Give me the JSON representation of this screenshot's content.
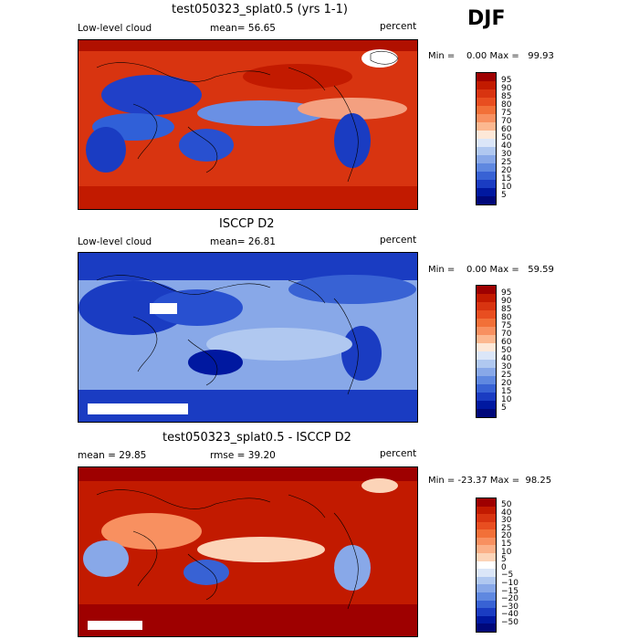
{
  "season": "DJF",
  "panels": [
    {
      "title": "test050323_splat0.5 (yrs 1-1)",
      "left_label": "Low-level cloud",
      "center_label": "mean=  56.65",
      "right_label": "percent",
      "minmax": "Min =    0.00 Max =   99.93",
      "colorbar_labels": [
        "95",
        "90",
        "85",
        "80",
        "75",
        "70",
        "60",
        "50",
        "40",
        "30",
        "25",
        "20",
        "15",
        "10",
        "5"
      ],
      "colors": [
        "#9e0000",
        "#c21a00",
        "#d83410",
        "#e84e20",
        "#f27038",
        "#f89060",
        "#fcb890",
        "#fde8d8",
        "#dbe6f8",
        "#b0c8f0",
        "#88a8e8",
        "#5f88e0",
        "#3862d4",
        "#1a3cc2",
        "#0018a0",
        "#00087a"
      ]
    },
    {
      "title": "ISCCP D2",
      "left_label": "Low-level cloud",
      "center_label": "mean=  26.81",
      "right_label": "percent",
      "minmax": "Min =    0.00 Max =   59.59",
      "colorbar_labels": [
        "95",
        "90",
        "85",
        "80",
        "75",
        "70",
        "60",
        "50",
        "40",
        "30",
        "25",
        "20",
        "15",
        "10",
        "5"
      ],
      "colors": [
        "#9e0000",
        "#c21a00",
        "#d83410",
        "#e84e20",
        "#f27038",
        "#f89060",
        "#fcb890",
        "#fde8d8",
        "#dbe6f8",
        "#b0c8f0",
        "#88a8e8",
        "#5f88e0",
        "#3862d4",
        "#1a3cc2",
        "#0018a0",
        "#00087a"
      ]
    },
    {
      "title": "test050323_splat0.5 - ISCCP D2",
      "left_label": "mean =  29.85",
      "center_label": "rmse =  39.20",
      "right_label": "percent",
      "minmax": "Min = -23.37 Max =  98.25",
      "colorbar_labels": [
        "50",
        "40",
        "30",
        "25",
        "20",
        "15",
        "10",
        "5",
        "0",
        "−5",
        "−10",
        "−15",
        "−20",
        "−30",
        "−40",
        "−50"
      ],
      "colors": [
        "#9e0000",
        "#c21a00",
        "#d83410",
        "#e84e20",
        "#f27038",
        "#f89060",
        "#fbb088",
        "#fcd4b8",
        "#ffffff",
        "#dbe6f8",
        "#b0c8f0",
        "#88a8e8",
        "#5f88e0",
        "#3862d4",
        "#1a3cc2",
        "#0018a0",
        "#00087a"
      ]
    }
  ]
}
